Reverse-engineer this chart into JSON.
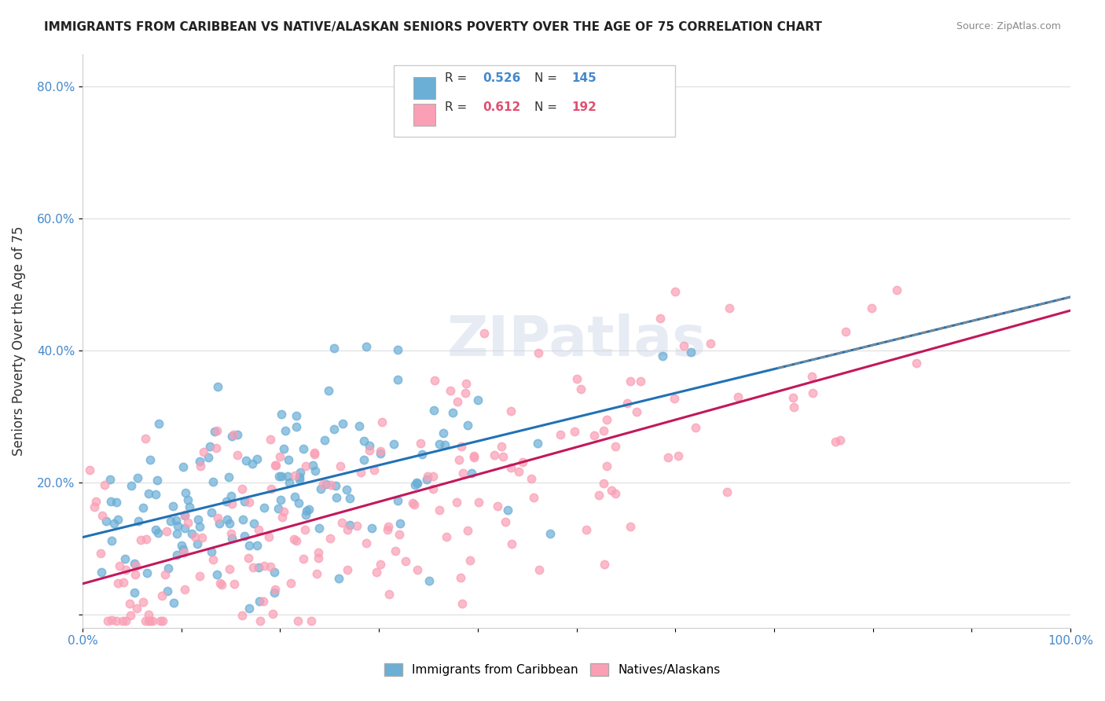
{
  "title": "IMMIGRANTS FROM CARIBBEAN VS NATIVE/ALASKAN SENIORS POVERTY OVER THE AGE OF 75 CORRELATION CHART",
  "source": "Source: ZipAtlas.com",
  "ylabel": "Seniors Poverty Over the Age of 75",
  "xlim": [
    0,
    1
  ],
  "ylim": [
    -0.02,
    0.85
  ],
  "yticks": [
    0.0,
    0.2,
    0.4,
    0.6,
    0.8
  ],
  "ytick_labels": [
    "",
    "20.0%",
    "40.0%",
    "60.0%",
    "80.0%"
  ],
  "xticks": [
    0.0,
    0.1,
    0.2,
    0.3,
    0.4,
    0.5,
    0.6,
    0.7,
    0.8,
    0.9,
    1.0
  ],
  "caribbean_R": 0.526,
  "caribbean_N": 145,
  "native_R": 0.612,
  "native_N": 192,
  "caribbean_color": "#6baed6",
  "native_color": "#fa9fb5",
  "caribbean_line_color": "#2171b5",
  "native_line_color": "#c2185b",
  "dashed_line_color": "#888888",
  "watermark": "ZIPatlas",
  "legend_caribbean_label": "Immigrants from Caribbean",
  "legend_native_label": "Natives/Alaskans",
  "background_color": "#ffffff",
  "grid_color": "#dddddd",
  "caribbean_R_str": "0.526",
  "native_R_str": "0.612",
  "caribbean_N_str": "145",
  "native_N_str": "192",
  "r_color_caribbean": "#4488cc",
  "n_color_caribbean": "#4488cc",
  "r_color_native": "#e05070",
  "n_color_native": "#e05070"
}
